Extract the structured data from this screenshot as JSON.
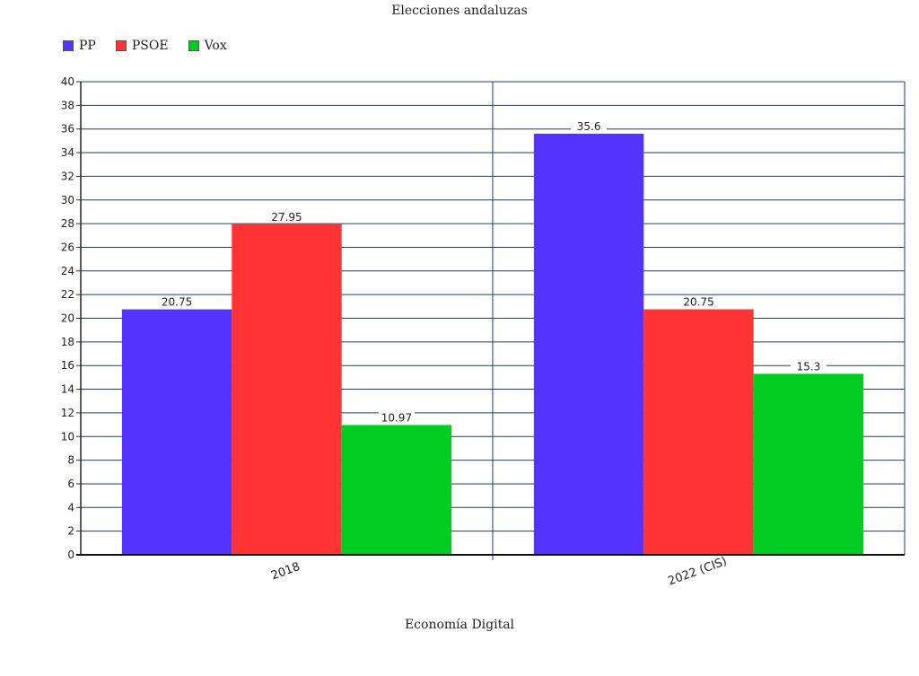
{
  "chart_data": {
    "type": "bar",
    "title": "Elecciones andaluzas",
    "xlabel": "Economía Digital",
    "ylabel": "",
    "categories": [
      "2018",
      "2022 (CIS)"
    ],
    "series": [
      {
        "name": "PP",
        "color": "#5533ff",
        "values": [
          20.75,
          35.6
        ]
      },
      {
        "name": "PSOE",
        "color": "#ff3333",
        "values": [
          27.95,
          20.75
        ]
      },
      {
        "name": "Vox",
        "color": "#00cc22",
        "values": [
          10.97,
          15.3
        ]
      }
    ],
    "ylim": [
      0,
      40
    ],
    "ytick_step": 2,
    "grid": true,
    "legend_position": "top-left"
  }
}
